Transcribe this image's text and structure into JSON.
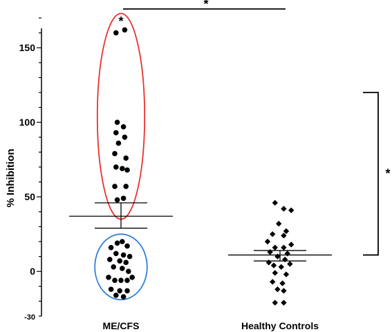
{
  "chart_data": {
    "type": "scatter",
    "title": "",
    "xlabel": "",
    "ylabel": "% Inhibition",
    "ylim": [
      -30,
      170
    ],
    "yticks": [
      150,
      100,
      50,
      0,
      -30
    ],
    "categories": [
      "ME/CFS",
      "Healthy Controls"
    ],
    "series": [
      {
        "category": "ME/CFS",
        "marker": "circle",
        "mean": 37,
        "error_upper": 46,
        "error_lower": 29,
        "points": [
          {
            "x": -0.04,
            "y": 160
          },
          {
            "x": 0.03,
            "y": 162
          },
          {
            "x": -0.03,
            "y": 100
          },
          {
            "x": 0.02,
            "y": 97
          },
          {
            "x": -0.04,
            "y": 93
          },
          {
            "x": 0.03,
            "y": 90
          },
          {
            "x": -0.02,
            "y": 86
          },
          {
            "x": -0.05,
            "y": 79
          },
          {
            "x": 0.04,
            "y": 76
          },
          {
            "x": -0.04,
            "y": 70
          },
          {
            "x": 0.01,
            "y": 69
          },
          {
            "x": 0.05,
            "y": 68
          },
          {
            "x": -0.05,
            "y": 57
          },
          {
            "x": 0.04,
            "y": 57
          },
          {
            "x": -0.03,
            "y": 48
          },
          {
            "x": 0.02,
            "y": 49
          },
          {
            "x": -0.03,
            "y": 19
          },
          {
            "x": 0.01,
            "y": 20
          },
          {
            "x": 0.05,
            "y": 17
          },
          {
            "x": -0.08,
            "y": 16
          },
          {
            "x": -0.04,
            "y": 12
          },
          {
            "x": 0.02,
            "y": 11
          },
          {
            "x": 0.07,
            "y": 10
          },
          {
            "x": -0.09,
            "y": 8
          },
          {
            "x": -0.01,
            "y": 7
          },
          {
            "x": 0.04,
            "y": 6
          },
          {
            "x": -0.06,
            "y": 3
          },
          {
            "x": 0.01,
            "y": 2
          },
          {
            "x": 0.06,
            "y": 0
          },
          {
            "x": -0.1,
            "y": -4
          },
          {
            "x": -0.05,
            "y": -6
          },
          {
            "x": 0.0,
            "y": -6
          },
          {
            "x": 0.05,
            "y": -6
          },
          {
            "x": 0.09,
            "y": -4
          },
          {
            "x": -0.08,
            "y": -12
          },
          {
            "x": -0.01,
            "y": -13
          },
          {
            "x": 0.05,
            "y": -13
          },
          {
            "x": -0.04,
            "y": -16
          },
          {
            "x": 0.02,
            "y": -17
          }
        ]
      },
      {
        "category": "Healthy Controls",
        "marker": "diamond",
        "mean": 11,
        "error_upper": 14,
        "error_lower": 7,
        "points": [
          {
            "x": -0.04,
            "y": 46
          },
          {
            "x": 0.03,
            "y": 42
          },
          {
            "x": 0.09,
            "y": 41
          },
          {
            "x": -0.01,
            "y": 32
          },
          {
            "x": 0.05,
            "y": 27
          },
          {
            "x": -0.06,
            "y": 25
          },
          {
            "x": 0.03,
            "y": 24
          },
          {
            "x": -0.1,
            "y": 20
          },
          {
            "x": 0.09,
            "y": 18
          },
          {
            "x": -0.04,
            "y": 16
          },
          {
            "x": 0.03,
            "y": 16
          },
          {
            "x": -0.08,
            "y": 13
          },
          {
            "x": 0.06,
            "y": 12
          },
          {
            "x": -0.02,
            "y": 10
          },
          {
            "x": 0.04,
            "y": 8
          },
          {
            "x": -0.09,
            "y": 6
          },
          {
            "x": 0.08,
            "y": 5
          },
          {
            "x": -0.05,
            "y": 4
          },
          {
            "x": 0.01,
            "y": 3
          },
          {
            "x": -0.04,
            "y": -1
          },
          {
            "x": 0.05,
            "y": -2
          },
          {
            "x": -0.06,
            "y": -7
          },
          {
            "x": 0.02,
            "y": -8
          },
          {
            "x": -0.02,
            "y": -12
          },
          {
            "x": 0.03,
            "y": -13
          },
          {
            "x": -0.04,
            "y": -21
          },
          {
            "x": 0.03,
            "y": -21
          }
        ]
      }
    ],
    "highlights": [
      {
        "category": "ME/CFS",
        "color": "#e8322d",
        "y_range": [
          35,
          173
        ],
        "x_halfwidth": 0.19
      },
      {
        "category": "ME/CFS",
        "color": "#2f7fd6",
        "y_range": [
          -19,
          25
        ],
        "x_halfwidth": 0.21
      }
    ],
    "significance": {
      "top_bracket_y": 187,
      "right_bracket_y_range": [
        11,
        120
      ],
      "label": "*"
    },
    "grid": false,
    "legend": "none"
  }
}
